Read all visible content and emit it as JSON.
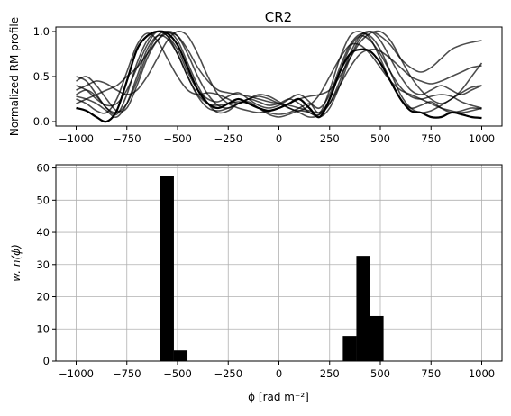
{
  "chart_data": [
    {
      "type": "line",
      "title": "CR2",
      "xlabel": "",
      "ylabel": "Normalized RM profile",
      "xlim": [
        -1100,
        1100
      ],
      "ylim": [
        -0.05,
        1.05
      ],
      "xticks": [
        -1000,
        -750,
        -500,
        -250,
        0,
        250,
        500,
        750,
        1000
      ],
      "xtick_labels": [
        "−1000",
        "−750",
        "−500",
        "−250",
        "0",
        "250",
        "500",
        "750",
        "1000"
      ],
      "yticks": [
        0.0,
        0.5,
        1.0
      ],
      "ytick_labels": [
        "0.0",
        "0.5",
        "1.0"
      ],
      "grid": false,
      "line_color": "#000000",
      "x": [
        -1000,
        -950,
        -900,
        -850,
        -800,
        -750,
        -700,
        -650,
        -600,
        -550,
        -500,
        -450,
        -400,
        -350,
        -300,
        -250,
        -200,
        -150,
        -100,
        -50,
        0,
        50,
        100,
        150,
        200,
        250,
        300,
        350,
        400,
        450,
        500,
        550,
        600,
        650,
        700,
        750,
        800,
        850,
        900,
        950,
        1000
      ],
      "series": [
        {
          "values": [
            0.15,
            0.12,
            0.05,
            0.0,
            0.12,
            0.45,
            0.8,
            0.95,
            1.0,
            0.98,
            0.85,
            0.6,
            0.35,
            0.2,
            0.15,
            0.2,
            0.25,
            0.2,
            0.15,
            0.12,
            0.15,
            0.2,
            0.25,
            0.15,
            0.05,
            0.25,
            0.55,
            0.75,
            0.8,
            0.78,
            0.65,
            0.45,
            0.25,
            0.12,
            0.1,
            0.05,
            0.05,
            0.1,
            0.08,
            0.05,
            0.04
          ]
        },
        {
          "values": [
            0.3,
            0.35,
            0.28,
            0.15,
            0.08,
            0.3,
            0.65,
            0.9,
            1.0,
            0.95,
            0.8,
            0.55,
            0.35,
            0.25,
            0.22,
            0.28,
            0.32,
            0.25,
            0.18,
            0.15,
            0.18,
            0.25,
            0.3,
            0.22,
            0.1,
            0.35,
            0.7,
            0.95,
            1.0,
            0.92,
            0.7,
            0.45,
            0.25,
            0.15,
            0.18,
            0.22,
            0.15,
            0.1,
            0.12,
            0.15,
            0.14
          ]
        },
        {
          "values": [
            0.45,
            0.5,
            0.4,
            0.25,
            0.12,
            0.15,
            0.4,
            0.7,
            0.9,
            1.0,
            0.95,
            0.75,
            0.5,
            0.3,
            0.18,
            0.15,
            0.2,
            0.25,
            0.22,
            0.18,
            0.2,
            0.25,
            0.2,
            0.1,
            0.08,
            0.2,
            0.45,
            0.75,
            0.95,
            1.0,
            0.9,
            0.7,
            0.5,
            0.35,
            0.3,
            0.35,
            0.4,
            0.35,
            0.3,
            0.35,
            0.4
          ]
        },
        {
          "values": [
            0.25,
            0.2,
            0.12,
            0.1,
            0.25,
            0.55,
            0.85,
            0.98,
            0.9,
            0.7,
            0.5,
            0.35,
            0.3,
            0.32,
            0.3,
            0.25,
            0.2,
            0.25,
            0.3,
            0.28,
            0.22,
            0.15,
            0.12,
            0.18,
            0.3,
            0.5,
            0.7,
            0.85,
            0.85,
            0.75,
            0.6,
            0.45,
            0.35,
            0.3,
            0.25,
            0.2,
            0.15,
            0.12,
            0.1,
            0.12,
            0.15
          ]
        },
        {
          "values": [
            0.5,
            0.45,
            0.3,
            0.15,
            0.1,
            0.2,
            0.45,
            0.75,
            0.95,
            1.0,
            0.9,
            0.65,
            0.4,
            0.2,
            0.1,
            0.12,
            0.2,
            0.22,
            0.15,
            0.08,
            0.05,
            0.08,
            0.12,
            0.1,
            0.05,
            0.15,
            0.4,
            0.7,
            0.92,
            1.0,
            0.95,
            0.85,
            0.7,
            0.6,
            0.55,
            0.6,
            0.7,
            0.8,
            0.85,
            0.88,
            0.9
          ]
        },
        {
          "values": [
            0.2,
            0.25,
            0.3,
            0.35,
            0.4,
            0.5,
            0.6,
            0.75,
            0.9,
            0.98,
            0.95,
            0.8,
            0.6,
            0.45,
            0.35,
            0.32,
            0.3,
            0.28,
            0.25,
            0.22,
            0.2,
            0.18,
            0.15,
            0.12,
            0.1,
            0.2,
            0.4,
            0.6,
            0.75,
            0.8,
            0.78,
            0.7,
            0.6,
            0.5,
            0.45,
            0.42,
            0.45,
            0.5,
            0.55,
            0.6,
            0.62
          ]
        },
        {
          "values": [
            0.35,
            0.4,
            0.45,
            0.42,
            0.35,
            0.3,
            0.35,
            0.5,
            0.7,
            0.9,
            1.0,
            0.95,
            0.75,
            0.5,
            0.3,
            0.2,
            0.15,
            0.12,
            0.1,
            0.12,
            0.15,
            0.2,
            0.25,
            0.28,
            0.3,
            0.35,
            0.5,
            0.7,
            0.88,
            0.98,
            1.0,
            0.9,
            0.7,
            0.5,
            0.35,
            0.25,
            0.2,
            0.25,
            0.35,
            0.5,
            0.65
          ]
        },
        {
          "values": [
            0.28,
            0.25,
            0.2,
            0.12,
            0.05,
            0.2,
            0.5,
            0.8,
            0.95,
            0.92,
            0.75,
            0.5,
            0.3,
            0.2,
            0.18,
            0.2,
            0.22,
            0.2,
            0.15,
            0.1,
            0.08,
            0.1,
            0.15,
            0.2,
            0.15,
            0.3,
            0.6,
            0.85,
            0.97,
            0.95,
            0.8,
            0.55,
            0.3,
            0.15,
            0.1,
            0.12,
            0.18,
            0.25,
            0.32,
            0.38,
            0.4
          ]
        },
        {
          "values": [
            0.4,
            0.35,
            0.25,
            0.18,
            0.2,
            0.35,
            0.6,
            0.85,
            1.0,
            0.95,
            0.75,
            0.5,
            0.28,
            0.15,
            0.12,
            0.15,
            0.2,
            0.25,
            0.28,
            0.25,
            0.2,
            0.15,
            0.1,
            0.05,
            0.08,
            0.25,
            0.55,
            0.82,
            0.95,
            0.9,
            0.75,
            0.55,
            0.38,
            0.28,
            0.25,
            0.28,
            0.3,
            0.28,
            0.22,
            0.18,
            0.15
          ]
        }
      ]
    },
    {
      "type": "bar",
      "title": "",
      "xlabel": "ϕ [rad m⁻²]",
      "ylabel": "w. n(ϕ)",
      "xlim": [
        -1100,
        1100
      ],
      "ylim": [
        0,
        61
      ],
      "xticks": [
        -1000,
        -750,
        -500,
        -250,
        0,
        250,
        500,
        750,
        1000
      ],
      "xtick_labels": [
        "−1000",
        "−750",
        "−500",
        "−250",
        "0",
        "250",
        "500",
        "750",
        "1000"
      ],
      "yticks": [
        0,
        10,
        20,
        30,
        40,
        50,
        60
      ],
      "ytick_labels": [
        "0",
        "10",
        "20",
        "30",
        "40",
        "50",
        "60"
      ],
      "grid": true,
      "bar_color": "#000000",
      "bin_width": 67,
      "bins": [
        {
          "x0": -585,
          "value": 57.5
        },
        {
          "x0": -518,
          "value": 3.3
        },
        {
          "x0": 315,
          "value": 7.8
        },
        {
          "x0": 382,
          "value": 32.7
        },
        {
          "x0": 449,
          "value": 14.0
        }
      ]
    }
  ]
}
